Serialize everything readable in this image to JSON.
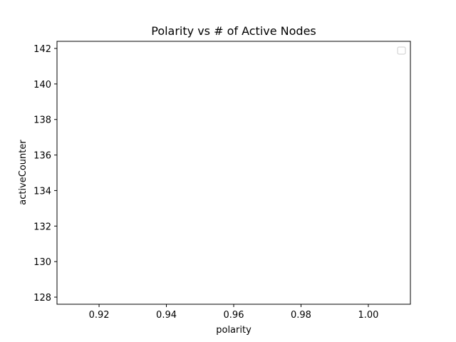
{
  "chart_data": {
    "type": "scatter",
    "title": "Polarity vs # of Active Nodes",
    "xlabel": "polarity",
    "ylabel": "activeCounter",
    "xlim": [
      0.9075,
      1.0125
    ],
    "ylim": [
      127.6,
      142.4
    ],
    "x_ticks": [
      0.92,
      0.94,
      0.96,
      0.98,
      1.0
    ],
    "x_tick_labels": [
      "0.92",
      "0.94",
      "0.96",
      "0.98",
      "1.00"
    ],
    "y_ticks": [
      128,
      130,
      132,
      134,
      136,
      138,
      140,
      142
    ],
    "y_tick_labels": [
      "128",
      "130",
      "132",
      "134",
      "136",
      "138",
      "140",
      "142"
    ],
    "series": [],
    "legend": {
      "position": "top-right",
      "entries": []
    },
    "grid": false
  }
}
